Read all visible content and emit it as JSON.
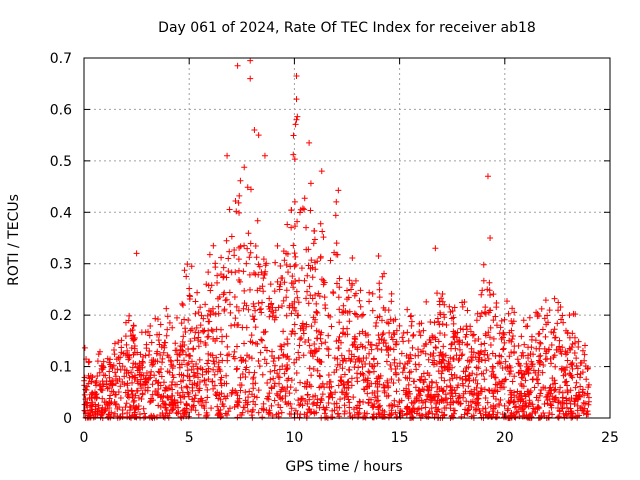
{
  "chart_data": {
    "type": "scatter",
    "title": "Day 061 of 2024, Rate Of TEC Index for receiver ab18",
    "xlabel": "GPS time / hours",
    "ylabel": "ROTI / TECUs",
    "xlim": [
      0,
      25
    ],
    "ylim": [
      0,
      0.7
    ],
    "x_ticks": [
      "0",
      "5",
      "10",
      "15",
      "20",
      "25"
    ],
    "y_ticks": [
      "0",
      "0.1",
      "0.2",
      "0.3",
      "0.4",
      "0.5",
      "0.6",
      "0.7"
    ],
    "grid": true,
    "marker": "+",
    "color": "#ff0000",
    "envelope_hours": [
      0,
      0.5,
      1,
      1.5,
      2,
      2.5,
      3,
      3.5,
      4,
      4.5,
      5,
      5.5,
      6,
      6.5,
      7,
      7.5,
      8,
      8.5,
      9,
      9.5,
      10,
      10.5,
      11,
      11.5,
      12,
      12.5,
      13,
      13.5,
      14,
      14.5,
      15,
      15.5,
      16,
      16.5,
      17,
      17.5,
      18,
      18.5,
      19,
      19.5,
      20,
      20.5,
      21,
      21.5,
      22,
      22.5,
      23,
      23.5,
      24
    ],
    "envelope_upper_roti": [
      0.15,
      0.14,
      0.15,
      0.17,
      0.23,
      0.2,
      0.22,
      0.23,
      0.22,
      0.26,
      0.33,
      0.29,
      0.35,
      0.34,
      0.5,
      0.52,
      0.55,
      0.44,
      0.38,
      0.36,
      0.66,
      0.45,
      0.53,
      0.38,
      0.48,
      0.34,
      0.32,
      0.27,
      0.31,
      0.27,
      0.26,
      0.22,
      0.25,
      0.24,
      0.33,
      0.26,
      0.27,
      0.25,
      0.35,
      0.3,
      0.25,
      0.22,
      0.21,
      0.23,
      0.28,
      0.26,
      0.25,
      0.2,
      0.2
    ],
    "notable_points": [
      {
        "x": 2.5,
        "y": 0.32
      },
      {
        "x": 6.8,
        "y": 0.51
      },
      {
        "x": 7.3,
        "y": 0.685
      },
      {
        "x": 7.9,
        "y": 0.695
      },
      {
        "x": 7.9,
        "y": 0.66
      },
      {
        "x": 8.1,
        "y": 0.56
      },
      {
        "x": 8.3,
        "y": 0.55
      },
      {
        "x": 8.6,
        "y": 0.51
      },
      {
        "x": 10.1,
        "y": 0.665
      },
      {
        "x": 10.1,
        "y": 0.62
      },
      {
        "x": 10.1,
        "y": 0.58
      },
      {
        "x": 10.7,
        "y": 0.535
      },
      {
        "x": 11.3,
        "y": 0.48
      },
      {
        "x": 14.0,
        "y": 0.315
      },
      {
        "x": 16.7,
        "y": 0.33
      },
      {
        "x": 19.2,
        "y": 0.47
      },
      {
        "x": 19.3,
        "y": 0.35
      }
    ]
  }
}
